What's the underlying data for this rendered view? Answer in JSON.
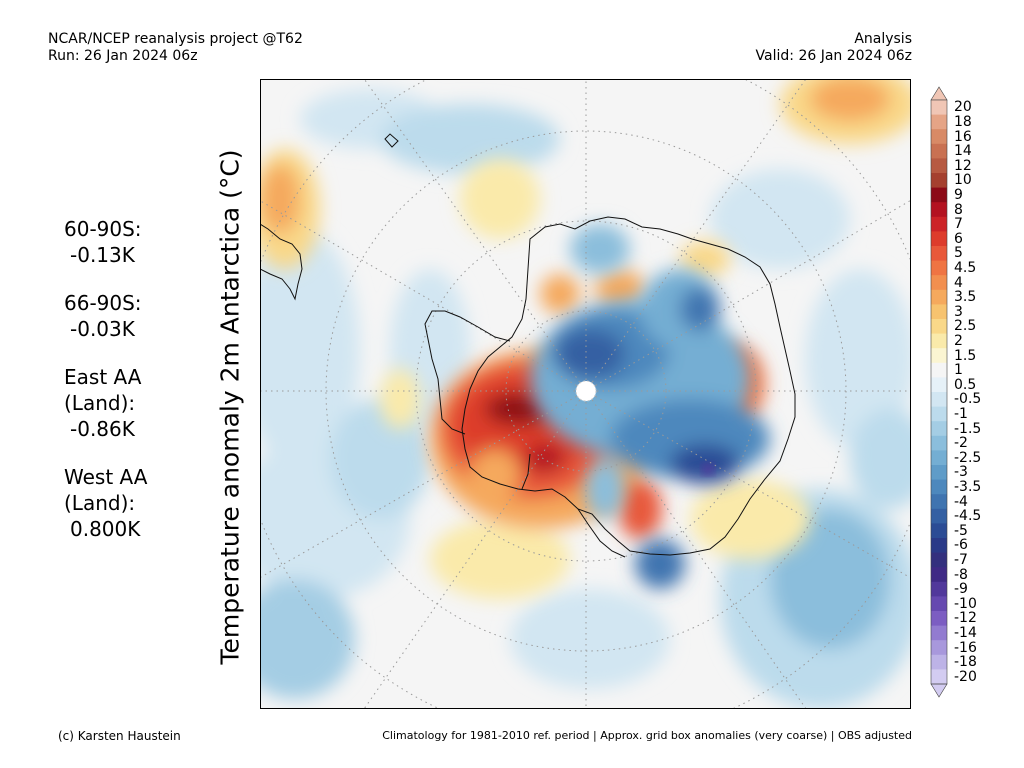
{
  "header": {
    "line1_left": "NCAR/NCEP reanalysis project @T62",
    "line2_left": "Run: 26 Jan 2024 06z",
    "line1_right": "Analysis",
    "line2_right": "Valid: 26 Jan 2024 06z"
  },
  "stats": [
    {
      "label": "60-90S:",
      "value": "-0.13K"
    },
    {
      "label": "66-90S:",
      "value": "-0.03K"
    },
    {
      "label": "East AA\n(Land):",
      "value": "-0.86K"
    },
    {
      "label": "West AA\n(Land):",
      "value": "0.800K"
    }
  ],
  "yaxis_title": "Temperature anomaly 2m Antarctica (°C)",
  "colorbar": {
    "labels": [
      "20",
      "18",
      "16",
      "14",
      "12",
      "10",
      "9",
      "8",
      "7",
      "6",
      "5",
      "4.5",
      "4",
      "3.5",
      "3",
      "2.5",
      "2",
      "1.5",
      "1",
      "0.5",
      "-0.5",
      "-1",
      "-1.5",
      "-2",
      "-2.5",
      "-3",
      "-3.5",
      "-4",
      "-4.5",
      "-5",
      "-6",
      "-7",
      "-8",
      "-9",
      "-10",
      "-12",
      "-14",
      "-16",
      "-18",
      "-20"
    ],
    "colors": [
      "#f0c6b5",
      "#e5a486",
      "#d88a66",
      "#c97152",
      "#b75a42",
      "#a5402f",
      "#8c0a17",
      "#b31220",
      "#cc2327",
      "#dd3c2c",
      "#e8583a",
      "#ef7443",
      "#f28f4f",
      "#f5a95d",
      "#f7c36f",
      "#f9d889",
      "#faeaaa",
      "#fbf5d2",
      "#f5f5f5",
      "#e6f1f8",
      "#d2e6f2",
      "#bcdbec",
      "#a4cde4",
      "#8bbedc",
      "#74aed3",
      "#5f9cc8",
      "#4d88bd",
      "#3f74b0",
      "#3460a3",
      "#2b4c95",
      "#2a3a88",
      "#33307e",
      "#3f2a85",
      "#51389b",
      "#6649b0",
      "#7c5dc2",
      "#927bd0",
      "#a898dc",
      "#bdb3e7",
      "#d3ccf1"
    ],
    "top_arrow_color": "#f0c6b5",
    "bottom_arrow_color": "#d3ccf1"
  },
  "footer": {
    "left": "(c) Karsten Haustein",
    "right": "Climatology for 1981-2010 ref. period | Approx. grid box anomalies (very coarse) | OBS adjusted"
  }
}
